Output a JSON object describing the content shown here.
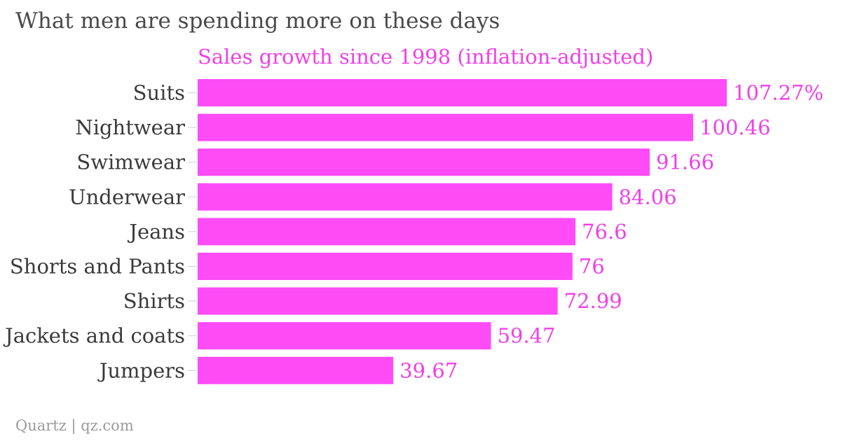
{
  "title": "What men are spending more on these days",
  "footer": "Quartz | qz.com",
  "colors": {
    "bar": "#ff4cf7",
    "accent_text": "#f040e8",
    "label_text": "#3a3a3a"
  },
  "chart_data": {
    "type": "bar",
    "orientation": "horizontal",
    "title": "What men are spending more on these days",
    "series": [
      {
        "name": "Sales growth since 1998 (inflation-adjusted)",
        "values": [
          107.27,
          100.46,
          91.66,
          84.06,
          76.6,
          76,
          72.99,
          59.47,
          39.67
        ],
        "value_labels": [
          "107.27%",
          "100.46",
          "91.66",
          "84.06",
          "76.6",
          "76",
          "72.99",
          "59.47",
          "39.67"
        ]
      }
    ],
    "categories": [
      "Suits",
      "Nightwear",
      "Swimwear",
      "Underwear",
      "Jeans",
      "Shorts and Pants",
      "Shirts",
      "Jackets and coats",
      "Jumpers"
    ],
    "xlabel": "",
    "ylabel": "",
    "xlim": [
      0,
      107.27
    ],
    "grid": false,
    "legend": "top"
  }
}
